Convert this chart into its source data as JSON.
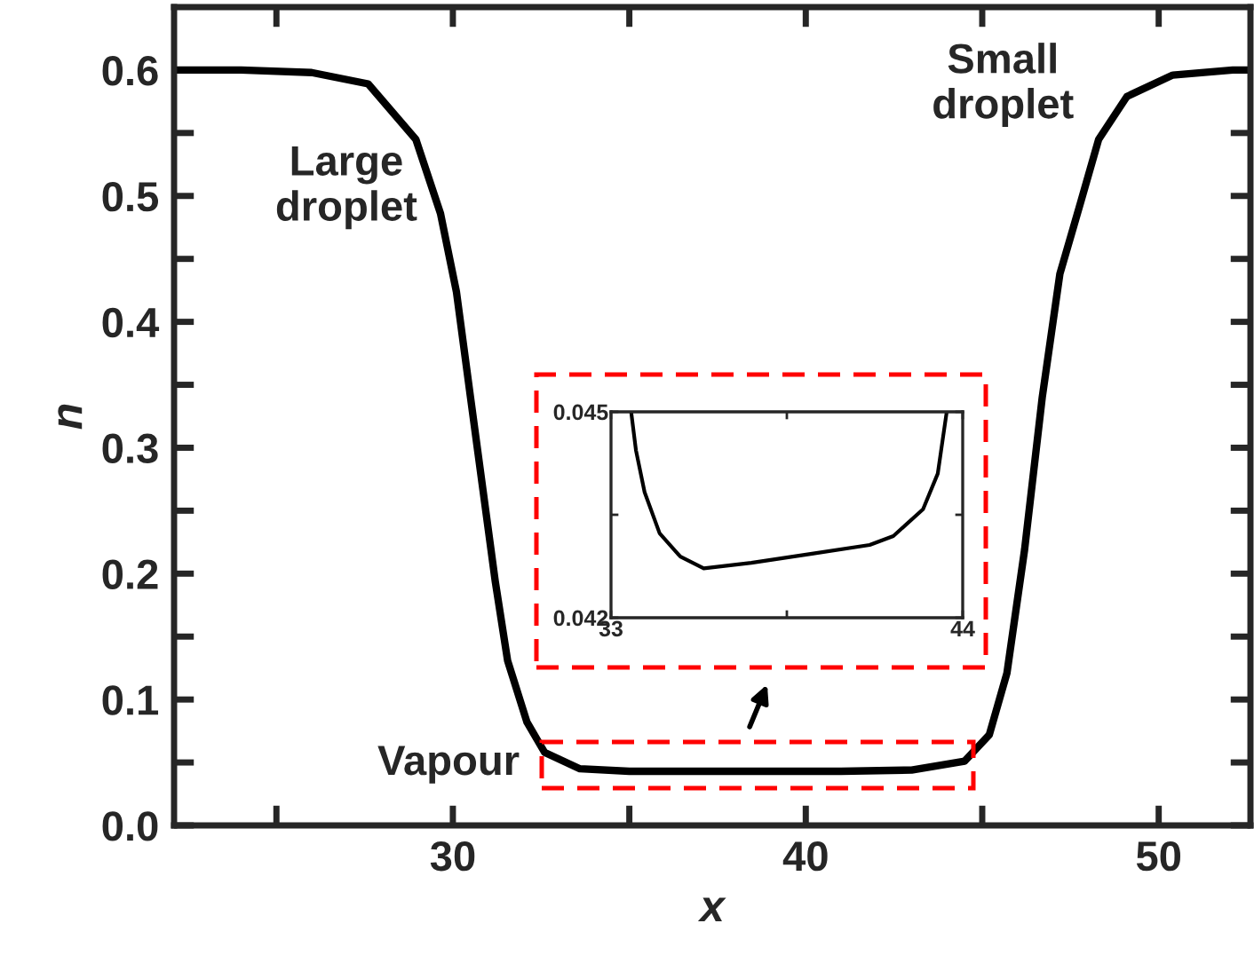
{
  "chart_data": [
    {
      "type": "line",
      "xlabel": "x",
      "ylabel": "n",
      "xlim": [
        22.1,
        52.6
      ],
      "ylim": [
        0,
        0.65
      ],
      "xticks": [
        {
          "value": 25,
          "label": null
        },
        30,
        {
          "value": 35,
          "label": null
        },
        40,
        {
          "value": 45,
          "label": null
        },
        50
      ],
      "yticks": [
        {
          "value": 0,
          "label": "0.0"
        },
        {
          "value": 0.05,
          "label": null
        },
        {
          "value": 0.1,
          "label": "0.1"
        },
        {
          "value": 0.15,
          "label": null
        },
        {
          "value": 0.2,
          "label": "0.2"
        },
        {
          "value": 0.25,
          "label": null
        },
        {
          "value": 0.3,
          "label": "0.3"
        },
        {
          "value": 0.35,
          "label": null
        },
        {
          "value": 0.4,
          "label": "0.4"
        },
        {
          "value": 0.45,
          "label": null
        },
        {
          "value": 0.5,
          "label": "0.5"
        },
        {
          "value": 0.55,
          "label": null
        },
        {
          "value": 0.6,
          "label": "0.6"
        }
      ],
      "annotations": [
        "Large\ndroplet",
        "Small\ndroplet",
        "Vapour"
      ],
      "series": [
        {
          "color": "#000000",
          "x": [
            22.1,
            24,
            26,
            27.6,
            28.95,
            29.65,
            30.1,
            30.5,
            30.85,
            31.2,
            31.55,
            32.1,
            32.6,
            33.6,
            35,
            38,
            41,
            43,
            44.5,
            45.2,
            45.7,
            46.2,
            46.7,
            47.2,
            47.8,
            48.3,
            49.1,
            50.4,
            52.1,
            52.6
          ],
          "values": [
            0.6,
            0.6,
            0.598,
            0.589,
            0.545,
            0.486,
            0.424,
            0.34,
            0.267,
            0.194,
            0.131,
            0.082,
            0.058,
            0.045,
            0.043,
            0.043,
            0.043,
            0.044,
            0.051,
            0.072,
            0.121,
            0.219,
            0.34,
            0.438,
            0.496,
            0.545,
            0.579,
            0.596,
            0.6,
            0.6
          ]
        }
      ]
    },
    {
      "type": "line",
      "xlim": [
        33,
        44
      ],
      "ylim": [
        0.042,
        0.045
      ],
      "xticks": [
        33,
        {
          "value": 38.5,
          "label": null
        },
        44
      ],
      "yticks": [
        0.042,
        {
          "value": 0.0435,
          "label": null
        },
        0.045
      ],
      "series": [
        {
          "color": "#000000",
          "x": [
            33.63,
            33.78,
            34.05,
            34.52,
            35.17,
            35.9,
            37.39,
            39.24,
            41.09,
            41.83,
            42.76,
            43.22,
            43.5
          ],
          "values": [
            0.045,
            0.04444,
            0.04383,
            0.04323,
            0.04289,
            0.04272,
            0.0428,
            0.04293,
            0.04306,
            0.04319,
            0.04358,
            0.0441,
            0.045
          ]
        }
      ]
    }
  ]
}
